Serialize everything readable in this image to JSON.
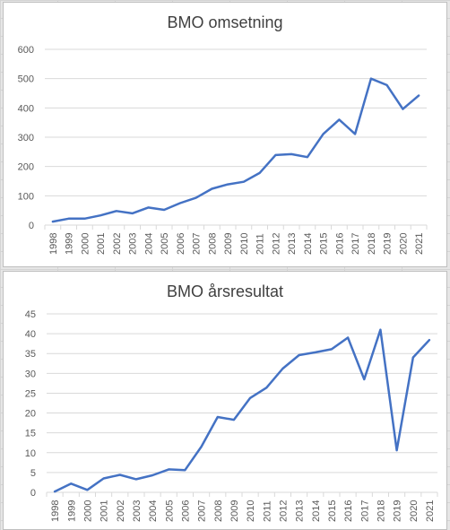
{
  "colors": {
    "line": "#4472c4",
    "grid": "#d9d9d9",
    "text": "#595959"
  },
  "chart_data": [
    {
      "type": "line",
      "title": "BMO omsetning",
      "xlabel": "",
      "ylabel": "",
      "ylim": [
        0,
        600
      ],
      "yticks": [
        "0",
        "100",
        "200",
        "300",
        "400",
        "500",
        "600"
      ],
      "grid": true,
      "legend": "none",
      "categories": [
        "1998",
        "1999",
        "2000",
        "2001",
        "2002",
        "2003",
        "2004",
        "2005",
        "2006",
        "2007",
        "2008",
        "2009",
        "2010",
        "2011",
        "2012",
        "2013",
        "2014",
        "2015",
        "2016",
        "2017",
        "2018",
        "2019",
        "2020",
        "2021"
      ],
      "series": [
        {
          "values": [
            12,
            22,
            22,
            33,
            48,
            40,
            60,
            52,
            75,
            93,
            124,
            139,
            148,
            178,
            239,
            242,
            232,
            311,
            360,
            311,
            500,
            478,
            396,
            442
          ]
        }
      ]
    },
    {
      "type": "line",
      "title": "BMO årsresultat",
      "xlabel": "",
      "ylabel": "",
      "ylim": [
        0,
        45
      ],
      "yticks": [
        "0",
        "5",
        "10",
        "15",
        "20",
        "25",
        "30",
        "35",
        "40",
        "45"
      ],
      "grid": true,
      "legend": "none",
      "categories": [
        "1998",
        "1999",
        "2000",
        "2001",
        "2002",
        "2003",
        "2004",
        "2005",
        "2006",
        "2007",
        "2008",
        "2009",
        "2010",
        "2011",
        "2012",
        "2013",
        "2014",
        "2015",
        "2016",
        "2017",
        "2018",
        "2019",
        "2020",
        "2021"
      ],
      "series": [
        {
          "values": [
            0.2,
            2.2,
            0.6,
            3.5,
            4.4,
            3.3,
            4.3,
            5.8,
            5.6,
            11.5,
            19.0,
            18.3,
            23.8,
            26.4,
            31.2,
            34.6,
            35.3,
            36.1,
            39.0,
            28.5,
            41.0,
            10.6,
            34.0,
            38.4
          ]
        }
      ]
    }
  ]
}
